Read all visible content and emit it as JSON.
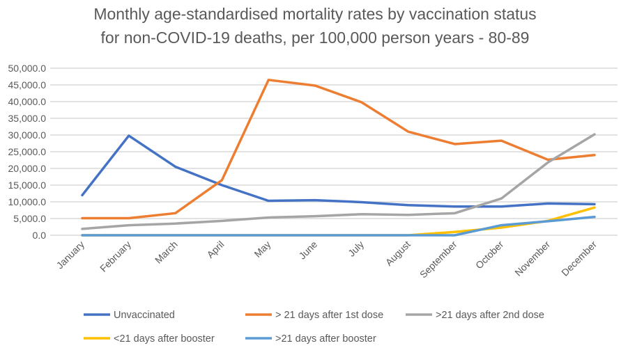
{
  "chart_data": {
    "type": "line",
    "title": [
      "Monthly age-standardised mortality rates by vaccination status",
      "for non-COVID-19 deaths, per 100,000 person years - 80-89"
    ],
    "xlabel": "",
    "ylabel": "",
    "ylim": [
      0,
      50000
    ],
    "yticks": [
      "0.0",
      "5,000.0",
      "10,000.0",
      "15,000.0",
      "20,000.0",
      "25,000.0",
      "30,000.0",
      "35,000.0",
      "40,000.0",
      "45,000.0",
      "50,000.0"
    ],
    "grid": true,
    "legend_position": "bottom",
    "categories": [
      "January",
      "February",
      "March",
      "April",
      "May",
      "June",
      "July",
      "August",
      "September",
      "October",
      "November",
      "December"
    ],
    "series": [
      {
        "name": "Unvaccinated",
        "color": "#4472C4",
        "values": [
          12000,
          29800,
          20500,
          15000,
          10300,
          10500,
          9900,
          9000,
          8600,
          8600,
          9500,
          9300
        ]
      },
      {
        "name": "> 21 days after 1st dose",
        "color": "#ED7D31",
        "values": [
          5100,
          5100,
          6600,
          16500,
          46500,
          44800,
          39800,
          31000,
          27300,
          28300,
          22600,
          24000
        ]
      },
      {
        "name": ">21 days after 2nd dose",
        "color": "#A5A5A5",
        "values": [
          1900,
          3000,
          3500,
          4300,
          5300,
          5700,
          6300,
          6100,
          6600,
          11000,
          21800,
          30200
        ]
      },
      {
        "name": "<21 days after booster",
        "color": "#FFC000",
        "values": [
          0,
          0,
          0,
          0,
          0,
          0,
          0,
          0,
          1000,
          2300,
          4300,
          8300
        ]
      },
      {
        "name": ">21 days after booster",
        "color": "#5B9BD5",
        "values": [
          0,
          0,
          0,
          0,
          0,
          0,
          0,
          0,
          0,
          3000,
          4200,
          5500
        ]
      }
    ]
  }
}
